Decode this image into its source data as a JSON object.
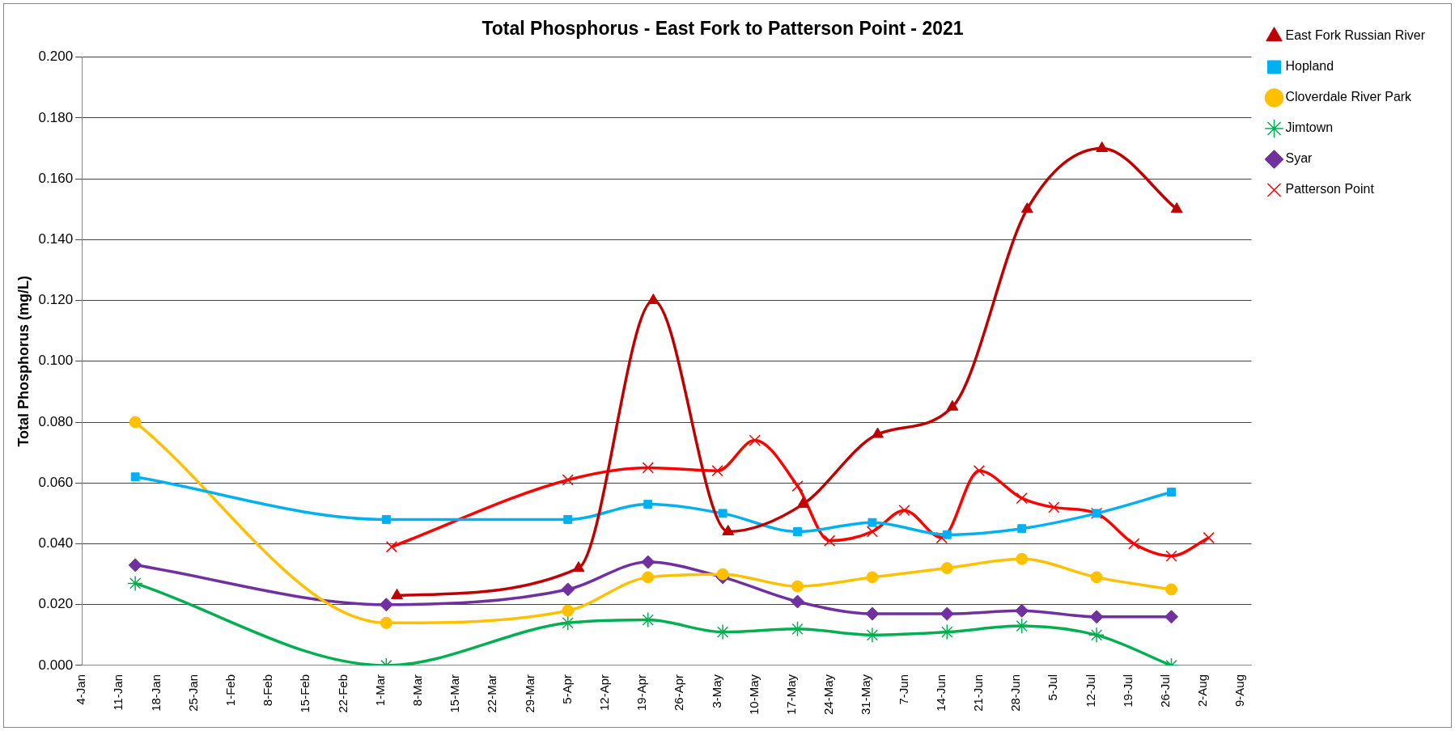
{
  "chart_data": {
    "type": "line",
    "title": "Total Phosphorus - East Fork to Patterson Point - 2021",
    "ylabel": "Total Phosphorus (mg/L)",
    "series": [
      {
        "name": "East Fork Russian River",
        "color": "#c00000",
        "marker": "triangle",
        "x": [
          "2021-03-04",
          "2021-04-07",
          "2021-04-21",
          "2021-05-05",
          "2021-05-19",
          "2021-06-02",
          "2021-06-16",
          "2021-06-30",
          "2021-07-14",
          "2021-07-28"
        ],
        "values": [
          0.023,
          0.032,
          0.12,
          0.044,
          0.053,
          0.076,
          0.085,
          0.15,
          0.17,
          0.15
        ]
      },
      {
        "name": "Hopland",
        "color": "#00b0f0",
        "marker": "square",
        "x": [
          "2021-01-14",
          "2021-03-02",
          "2021-04-05",
          "2021-04-20",
          "2021-05-04",
          "2021-05-18",
          "2021-06-01",
          "2021-06-15",
          "2021-06-29",
          "2021-07-13",
          "2021-07-27"
        ],
        "values": [
          0.062,
          0.048,
          0.048,
          0.053,
          0.05,
          0.044,
          0.047,
          0.043,
          0.045,
          0.05,
          0.057
        ]
      },
      {
        "name": "Cloverdale River Park",
        "color": "#ffc000",
        "marker": "circle",
        "x": [
          "2021-01-14",
          "2021-03-02",
          "2021-04-05",
          "2021-04-20",
          "2021-05-04",
          "2021-05-18",
          "2021-06-01",
          "2021-06-15",
          "2021-06-29",
          "2021-07-13",
          "2021-07-27"
        ],
        "values": [
          0.08,
          0.014,
          0.018,
          0.029,
          0.03,
          0.026,
          0.029,
          0.032,
          0.035,
          0.029,
          0.025
        ]
      },
      {
        "name": "Jimtown",
        "color": "#00b050",
        "marker": "cross",
        "x": [
          "2021-01-14",
          "2021-03-02",
          "2021-04-05",
          "2021-04-20",
          "2021-05-04",
          "2021-05-18",
          "2021-06-01",
          "2021-06-15",
          "2021-06-29",
          "2021-07-13",
          "2021-07-27"
        ],
        "values": [
          0.027,
          0.0,
          0.014,
          0.015,
          0.011,
          0.012,
          0.01,
          0.011,
          0.013,
          0.01,
          0.0
        ]
      },
      {
        "name": "Syar",
        "color": "#7030a0",
        "marker": "diamond",
        "x": [
          "2021-01-14",
          "2021-03-02",
          "2021-04-05",
          "2021-04-20",
          "2021-05-04",
          "2021-05-18",
          "2021-06-01",
          "2021-06-15",
          "2021-06-29",
          "2021-07-13",
          "2021-07-27"
        ],
        "values": [
          0.033,
          0.02,
          0.025,
          0.034,
          0.029,
          0.021,
          0.017,
          0.017,
          0.018,
          0.016,
          0.016
        ]
      },
      {
        "name": "Patterson Point",
        "color": "#ff0000",
        "marker": "cross",
        "x": [
          "2021-03-03",
          "2021-04-05",
          "2021-04-20",
          "2021-05-03",
          "2021-05-10",
          "2021-05-18",
          "2021-05-24",
          "2021-06-01",
          "2021-06-07",
          "2021-06-14",
          "2021-06-21",
          "2021-06-29",
          "2021-07-05",
          "2021-07-13",
          "2021-07-20",
          "2021-07-27",
          "2021-08-03"
        ],
        "values": [
          0.039,
          0.061,
          0.065,
          0.064,
          0.074,
          0.059,
          0.041,
          0.044,
          0.051,
          0.042,
          0.064,
          0.055,
          0.052,
          0.05,
          0.04,
          0.036,
          0.042
        ]
      }
    ],
    "xlim": [
      "2021-01-04",
      "2021-08-11"
    ],
    "xticks": [
      {
        "value": "2021-01-04",
        "label": "4-Jan"
      },
      {
        "value": "2021-01-11",
        "label": "11-Jan"
      },
      {
        "value": "2021-01-18",
        "label": "18-Jan"
      },
      {
        "value": "2021-01-25",
        "label": "25-Jan"
      },
      {
        "value": "2021-02-01",
        "label": "1-Feb"
      },
      {
        "value": "2021-02-08",
        "label": "8-Feb"
      },
      {
        "value": "2021-02-15",
        "label": "15-Feb"
      },
      {
        "value": "2021-02-22",
        "label": "22-Feb"
      },
      {
        "value": "2021-03-01",
        "label": "1-Mar"
      },
      {
        "value": "2021-03-08",
        "label": "8-Mar"
      },
      {
        "value": "2021-03-15",
        "label": "15-Mar"
      },
      {
        "value": "2021-03-22",
        "label": "22-Mar"
      },
      {
        "value": "2021-03-29",
        "label": "29-Mar"
      },
      {
        "value": "2021-04-05",
        "label": "5-Apr"
      },
      {
        "value": "2021-04-12",
        "label": "12-Apr"
      },
      {
        "value": "2021-04-19",
        "label": "19-Apr"
      },
      {
        "value": "2021-04-26",
        "label": "26-Apr"
      },
      {
        "value": "2021-05-03",
        "label": "3-May"
      },
      {
        "value": "2021-05-10",
        "label": "10-May"
      },
      {
        "value": "2021-05-17",
        "label": "17-May"
      },
      {
        "value": "2021-05-24",
        "label": "24-May"
      },
      {
        "value": "2021-05-31",
        "label": "31-May"
      },
      {
        "value": "2021-06-07",
        "label": "7-Jun"
      },
      {
        "value": "2021-06-14",
        "label": "14-Jun"
      },
      {
        "value": "2021-06-21",
        "label": "21-Jun"
      },
      {
        "value": "2021-06-28",
        "label": "28-Jun"
      },
      {
        "value": "2021-07-05",
        "label": "5-Jul"
      },
      {
        "value": "2021-07-12",
        "label": "12-Jul"
      },
      {
        "value": "2021-07-19",
        "label": "19-Jul"
      },
      {
        "value": "2021-07-26",
        "label": "26-Jul"
      },
      {
        "value": "2021-08-02",
        "label": "2-Aug"
      },
      {
        "value": "2021-08-09",
        "label": "9-Aug"
      }
    ],
    "ylim": [
      0,
      0.2
    ],
    "yticks": [
      {
        "value": 0,
        "label": "0.000"
      },
      {
        "value": 0.02,
        "label": "0.020"
      },
      {
        "value": 0.04,
        "label": "0.040"
      },
      {
        "value": 0.06,
        "label": "0.060"
      },
      {
        "value": 0.08,
        "label": "0.080"
      },
      {
        "value": 0.1,
        "label": "0.100"
      },
      {
        "value": 0.12,
        "label": "0.120"
      },
      {
        "value": 0.14,
        "label": "0.140"
      },
      {
        "value": 0.16,
        "label": "0.160"
      },
      {
        "value": 0.18,
        "label": "0.180"
      },
      {
        "value": 0.2,
        "label": "0.200"
      }
    ],
    "grid": "y",
    "legend": "right",
    "line_style": "solid"
  }
}
